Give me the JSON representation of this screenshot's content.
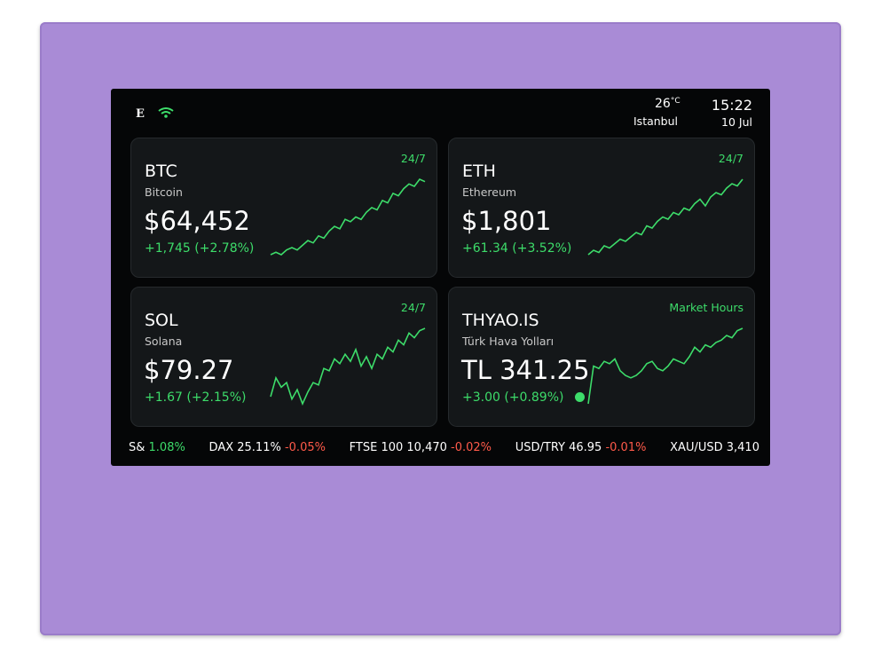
{
  "status": {
    "temperature": "26",
    "temp_unit": "°C",
    "city": "Istanbul",
    "time": "15:22",
    "date": "10 Jul"
  },
  "cards": [
    {
      "symbol": "BTC",
      "name": "Bitcoin",
      "price": "$64,452",
      "change": "+1,745 (+2.78%)",
      "badge": "24/7",
      "trend": [
        2,
        3,
        2,
        4,
        5,
        4,
        6,
        8,
        7,
        10,
        9,
        12,
        14,
        13,
        17,
        16,
        18,
        17,
        20,
        22,
        21,
        25,
        24,
        28,
        27,
        30,
        32,
        31,
        34,
        33
      ]
    },
    {
      "symbol": "ETH",
      "name": "Ethereum",
      "price": "$1,801",
      "change": "+61.34 (+3.52%)",
      "badge": "24/7",
      "trend": [
        1,
        3,
        2,
        5,
        4,
        6,
        8,
        7,
        9,
        11,
        10,
        14,
        13,
        16,
        18,
        17,
        20,
        19,
        22,
        21,
        24,
        26,
        23,
        27,
        29,
        28,
        31,
        33,
        32,
        35
      ]
    },
    {
      "symbol": "SOL",
      "name": "Solana",
      "price": "$79.27",
      "change": "+1.67 (+2.15%)",
      "badge": "24/7",
      "trend": [
        6,
        14,
        10,
        12,
        5,
        9,
        3,
        8,
        12,
        11,
        18,
        17,
        22,
        20,
        24,
        21,
        26,
        19,
        23,
        18,
        24,
        22,
        27,
        25,
        30,
        28,
        33,
        31,
        34,
        35
      ]
    },
    {
      "symbol": "THYAO.IS",
      "name": "Türk Hava Yolları",
      "price": "TL 341.25",
      "change": "+3.00 (+0.89%)",
      "badge": "Market Hours",
      "trend": [
        2,
        18,
        17,
        20,
        19,
        21,
        16,
        14,
        13,
        14,
        16,
        19,
        20,
        17,
        16,
        18,
        21,
        20,
        19,
        22,
        26,
        24,
        27,
        26,
        28,
        29,
        31,
        30,
        33,
        34
      ]
    }
  ],
  "ticker": [
    {
      "label": "S&",
      "change": "1.08%",
      "direction": "up"
    },
    {
      "label": "DAX 25.11%",
      "change": "-0.05%",
      "direction": "down"
    },
    {
      "label": "FTSE 100 10,470",
      "change": "-0.02%",
      "direction": "down"
    },
    {
      "label": "USD/TRY 46.95",
      "change": "-0.01%",
      "direction": "down"
    },
    {
      "label": "XAU/USD 3,410",
      "change": null,
      "direction": null
    }
  ]
}
